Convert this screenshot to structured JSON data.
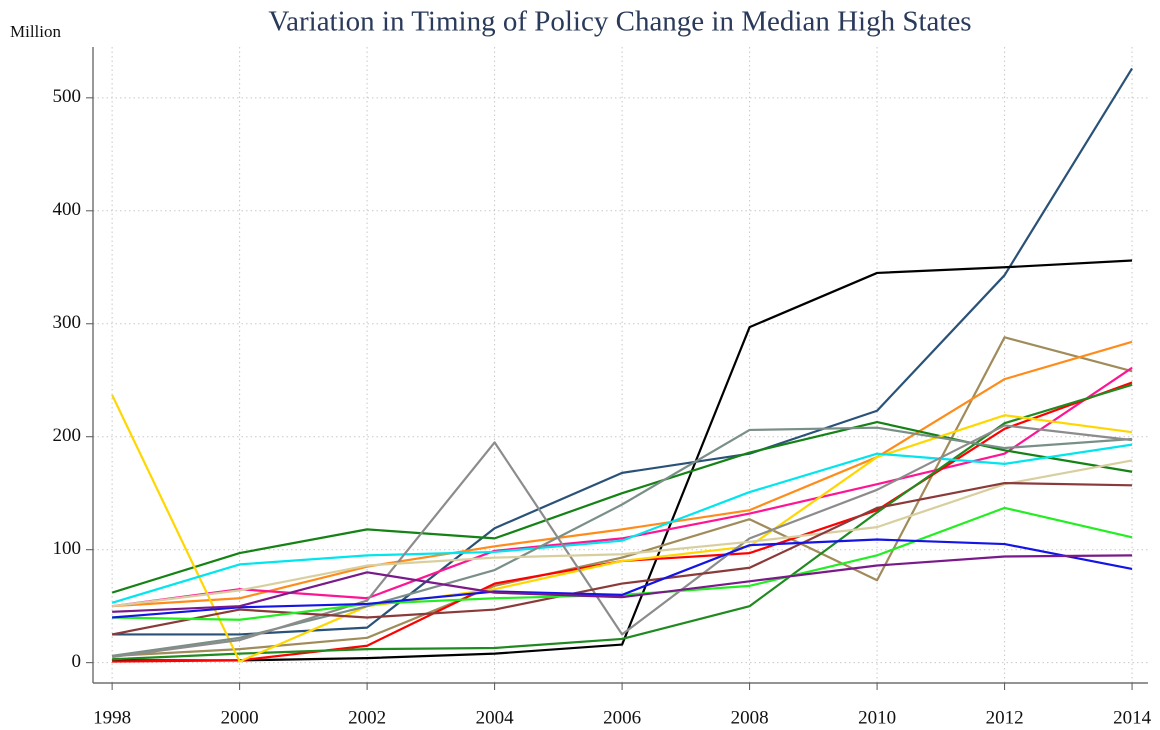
{
  "chart_data": {
    "type": "line",
    "title": "Variation in Timing of Policy Change in Median High States",
    "y_label": "Million",
    "x": [
      1998,
      2000,
      2002,
      2004,
      2006,
      2008,
      2010,
      2012,
      2014
    ],
    "xlim": [
      1997.7,
      2014.25
    ],
    "xticks": [
      1998,
      2000,
      2002,
      2004,
      2006,
      2008,
      2010,
      2012,
      2014
    ],
    "ylim": [
      -18,
      545
    ],
    "yticks": [
      0,
      100,
      200,
      300,
      400,
      500
    ],
    "grid": true,
    "series": [
      {
        "color": "#2a5278",
        "values": [
          25,
          25,
          31,
          119,
          168,
          185,
          223,
          343,
          526
        ]
      },
      {
        "color": "#000000",
        "values": [
          2,
          2,
          4,
          8,
          16,
          297,
          345,
          350,
          356
        ]
      },
      {
        "color": "#a08c5a",
        "values": [
          6,
          12,
          22,
          68,
          93,
          127,
          73,
          288,
          258
        ]
      },
      {
        "color": "#ff8c1a",
        "values": [
          50,
          57,
          85,
          103,
          118,
          135,
          182,
          251,
          284
        ]
      },
      {
        "color": "#ff1493",
        "values": [
          50,
          65,
          57,
          99,
          110,
          132,
          158,
          185,
          261
        ]
      },
      {
        "color": "#ff0000",
        "values": [
          1,
          2,
          15,
          70,
          90,
          97,
          135,
          207,
          248
        ]
      },
      {
        "color": "#1f8a1f",
        "values": [
          3,
          8,
          12,
          13,
          21,
          50,
          133,
          212,
          246
        ]
      },
      {
        "color": "#148214",
        "values": [
          62,
          97,
          118,
          110,
          150,
          186,
          213,
          188,
          169
        ]
      },
      {
        "color": "#ffd700",
        "values": [
          237,
          1,
          50,
          65,
          90,
          103,
          182,
          219,
          204
        ]
      },
      {
        "color": "#00e5ee",
        "values": [
          53,
          87,
          95,
          98,
          108,
          151,
          185,
          176,
          193
        ]
      },
      {
        "color": "#7a8f88",
        "values": [
          6,
          22,
          50,
          82,
          140,
          206,
          208,
          190,
          198
        ]
      },
      {
        "color": "#8c8c8c",
        "values": [
          5,
          20,
          55,
          195,
          25,
          110,
          153,
          210,
          197
        ]
      },
      {
        "color": "#d8cfa0",
        "values": [
          50,
          64,
          86,
          93,
          96,
          107,
          120,
          158,
          179
        ]
      },
      {
        "color": "#8b3a3a",
        "values": [
          25,
          47,
          40,
          47,
          70,
          84,
          137,
          159,
          157
        ]
      },
      {
        "color": "#22ee22",
        "values": [
          40,
          38,
          52,
          57,
          60,
          68,
          95,
          137,
          111
        ]
      },
      {
        "color": "#1414e6",
        "values": [
          40,
          49,
          52,
          63,
          60,
          104,
          109,
          105,
          83
        ]
      },
      {
        "color": "#7a1a8a",
        "values": [
          45,
          50,
          80,
          62,
          58,
          72,
          86,
          94,
          95
        ]
      }
    ]
  }
}
